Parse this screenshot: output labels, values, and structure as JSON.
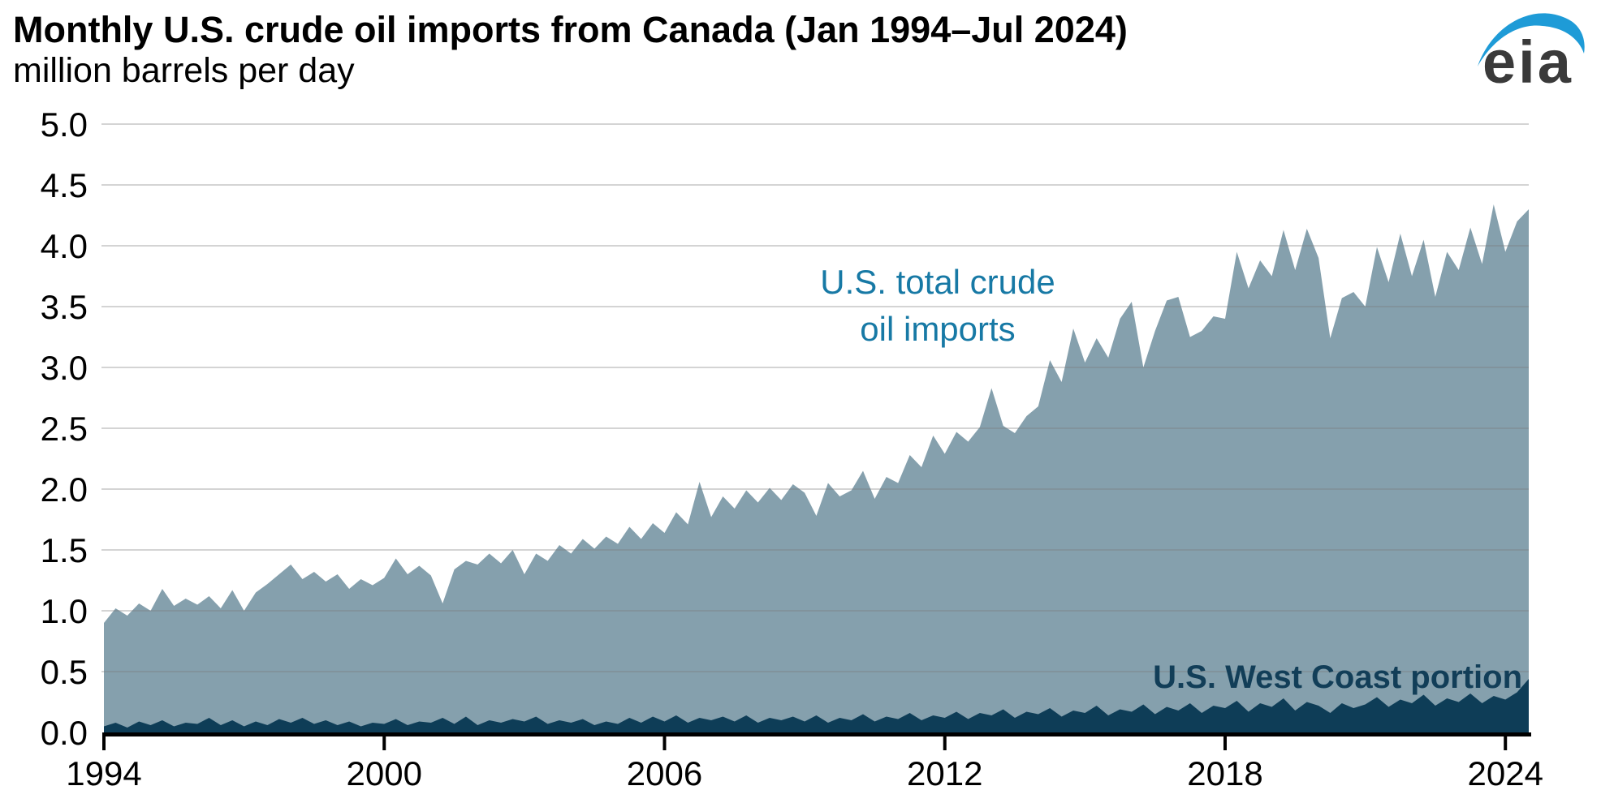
{
  "header": {
    "title": "Monthly U.S. crude oil imports from Canada (Jan 1994–Jul 2024)",
    "subtitle": "million barrels per day",
    "logo_text": "eia"
  },
  "colors": {
    "total_fill": "#85A0AD",
    "west_fill": "#0E3D57",
    "total_label": "#1779A5",
    "west_label": "#123E58",
    "gridline": "rgba(120,120,120,0.32)",
    "axis": "#000000",
    "logo_blue": "#1E9BD7",
    "logo_gray": "#3A3A3A"
  },
  "chart_data": {
    "type": "area",
    "title": "Monthly U.S. crude oil imports from Canada (Jan 1994–Jul 2024)",
    "ylabel": "million barrels per day",
    "xlabel": "",
    "ylim": [
      0,
      5
    ],
    "grid": "horizontal",
    "legend_position": "inline-annotations",
    "x_start": 1994.0,
    "x_end": 2024.5,
    "x_step_years": 0.25,
    "x_tick_years": [
      1994,
      2000,
      2006,
      2012,
      2018,
      2024
    ],
    "x_tick_labels": [
      "1994",
      "2000",
      "2006",
      "2012",
      "2018",
      "2024"
    ],
    "y_ticks": [
      "5.0",
      "4.5",
      "4.0",
      "3.5",
      "3.0",
      "2.5",
      "2.0",
      "1.5",
      "1.0",
      "0.5",
      "0.0"
    ],
    "series": [
      {
        "name": "U.S. total crude oil imports",
        "label_lines": [
          "U.S. total crude",
          "oil imports"
        ],
        "color": "#85A0AD",
        "values": [
          0.9,
          1.02,
          0.96,
          1.06,
          1.0,
          1.18,
          1.04,
          1.1,
          1.05,
          1.12,
          1.02,
          1.17,
          1.0,
          1.15,
          1.22,
          1.3,
          1.38,
          1.26,
          1.32,
          1.24,
          1.3,
          1.18,
          1.26,
          1.21,
          1.27,
          1.43,
          1.3,
          1.37,
          1.29,
          1.06,
          1.34,
          1.41,
          1.38,
          1.47,
          1.39,
          1.5,
          1.3,
          1.47,
          1.41,
          1.54,
          1.47,
          1.59,
          1.51,
          1.61,
          1.55,
          1.69,
          1.59,
          1.72,
          1.64,
          1.81,
          1.71,
          2.06,
          1.77,
          1.94,
          1.84,
          1.99,
          1.89,
          2.01,
          1.91,
          2.04,
          1.97,
          1.78,
          2.05,
          1.94,
          1.99,
          2.15,
          1.92,
          2.1,
          2.05,
          2.28,
          2.18,
          2.44,
          2.29,
          2.47,
          2.39,
          2.51,
          2.83,
          2.52,
          2.46,
          2.6,
          2.68,
          3.06,
          2.88,
          3.32,
          3.04,
          3.24,
          3.08,
          3.4,
          3.54,
          3.0,
          3.3,
          3.55,
          3.58,
          3.25,
          3.3,
          3.42,
          3.4,
          3.95,
          3.65,
          3.88,
          3.75,
          4.13,
          3.8,
          4.14,
          3.9,
          3.24,
          3.57,
          3.62,
          3.5,
          3.99,
          3.7,
          4.1,
          3.75,
          4.05,
          3.58,
          3.95,
          3.8,
          4.15,
          3.85,
          4.34,
          3.95,
          4.2,
          4.3
        ]
      },
      {
        "name": "U.S. West Coast portion",
        "label_lines": [
          "U.S. West Coast portion"
        ],
        "color": "#0E3D57",
        "values": [
          0.05,
          0.08,
          0.04,
          0.09,
          0.06,
          0.1,
          0.05,
          0.08,
          0.07,
          0.12,
          0.06,
          0.1,
          0.05,
          0.09,
          0.06,
          0.11,
          0.08,
          0.12,
          0.07,
          0.1,
          0.06,
          0.09,
          0.05,
          0.08,
          0.07,
          0.11,
          0.06,
          0.09,
          0.08,
          0.12,
          0.07,
          0.13,
          0.06,
          0.1,
          0.08,
          0.11,
          0.09,
          0.13,
          0.07,
          0.1,
          0.08,
          0.11,
          0.06,
          0.09,
          0.07,
          0.12,
          0.08,
          0.13,
          0.09,
          0.14,
          0.08,
          0.12,
          0.1,
          0.13,
          0.09,
          0.14,
          0.08,
          0.12,
          0.1,
          0.13,
          0.09,
          0.14,
          0.08,
          0.12,
          0.1,
          0.15,
          0.09,
          0.13,
          0.11,
          0.16,
          0.1,
          0.14,
          0.12,
          0.17,
          0.11,
          0.16,
          0.14,
          0.19,
          0.12,
          0.17,
          0.15,
          0.2,
          0.13,
          0.18,
          0.16,
          0.22,
          0.14,
          0.19,
          0.17,
          0.23,
          0.15,
          0.21,
          0.18,
          0.24,
          0.16,
          0.22,
          0.2,
          0.26,
          0.17,
          0.24,
          0.21,
          0.28,
          0.18,
          0.25,
          0.22,
          0.16,
          0.24,
          0.2,
          0.23,
          0.29,
          0.21,
          0.27,
          0.24,
          0.31,
          0.22,
          0.28,
          0.25,
          0.32,
          0.24,
          0.3,
          0.27,
          0.33,
          0.44
        ]
      }
    ]
  }
}
